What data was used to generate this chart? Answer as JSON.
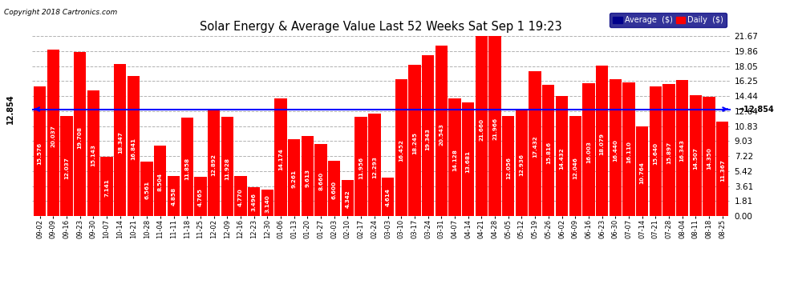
{
  "title": "Solar Energy & Average Value Last 52 Weeks Sat Sep 1 19:23",
  "copyright": "Copyright 2018 Cartronics.com",
  "average_line": 12.854,
  "average_label": "12.854",
  "bar_color": "#FF0000",
  "average_line_color": "#0000FF",
  "background_color": "#FFFFFF",
  "plot_bg_color": "#FFFFFF",
  "grid_color": "#AAAAAA",
  "ylim": [
    0,
    21.67
  ],
  "yticks": [
    0.0,
    1.81,
    3.61,
    5.42,
    7.22,
    9.03,
    10.83,
    12.64,
    14.44,
    16.25,
    18.05,
    19.86,
    21.67
  ],
  "legend_avg_color": "#00008B",
  "legend_daily_color": "#FF0000",
  "categories": [
    "09-02",
    "09-09",
    "09-16",
    "09-23",
    "09-30",
    "10-07",
    "10-14",
    "10-21",
    "10-28",
    "11-04",
    "11-11",
    "11-18",
    "11-25",
    "12-02",
    "12-09",
    "12-16",
    "12-23",
    "12-30",
    "01-06",
    "01-13",
    "01-20",
    "01-27",
    "02-03",
    "02-10",
    "02-17",
    "02-24",
    "03-03",
    "03-10",
    "03-17",
    "03-24",
    "03-31",
    "04-07",
    "04-14",
    "04-21",
    "04-28",
    "05-05",
    "05-12",
    "05-19",
    "05-26",
    "06-02",
    "06-09",
    "06-16",
    "06-23",
    "06-30",
    "07-07",
    "07-14",
    "07-21",
    "07-28",
    "08-04",
    "08-11",
    "08-18",
    "08-25"
  ],
  "values": [
    15.576,
    20.037,
    12.037,
    19.708,
    15.143,
    7.141,
    18.347,
    16.841,
    6.561,
    8.504,
    4.858,
    11.858,
    4.765,
    12.892,
    11.928,
    4.77,
    3.496,
    3.14,
    14.174,
    9.261,
    9.613,
    8.66,
    6.6,
    4.342,
    11.956,
    12.293,
    4.614,
    16.452,
    18.245,
    19.343,
    20.543,
    14.128,
    13.681,
    21.66,
    21.966,
    12.056,
    12.936,
    17.432,
    15.816,
    14.432,
    12.046,
    16.003,
    18.079,
    16.44,
    16.11,
    10.764,
    15.64,
    15.897,
    16.343,
    14.507,
    14.35,
    11.367
  ],
  "value_fontsize": 5.2,
  "xlabel_fontsize": 6.0,
  "ylabel_fontsize": 7.5
}
